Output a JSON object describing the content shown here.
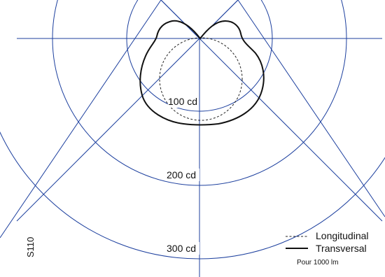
{
  "rings": [
    {
      "label": "100 cd"
    },
    {
      "label": "200 cd"
    },
    {
      "label": "300 cd"
    }
  ],
  "legend": {
    "longitudinal": "Longitudinal",
    "transversal": "Transversal",
    "note": "Pour 1000 lm"
  },
  "code": "S110",
  "colors": {
    "grid": "#1c3f9e",
    "curve": "#111111"
  }
}
